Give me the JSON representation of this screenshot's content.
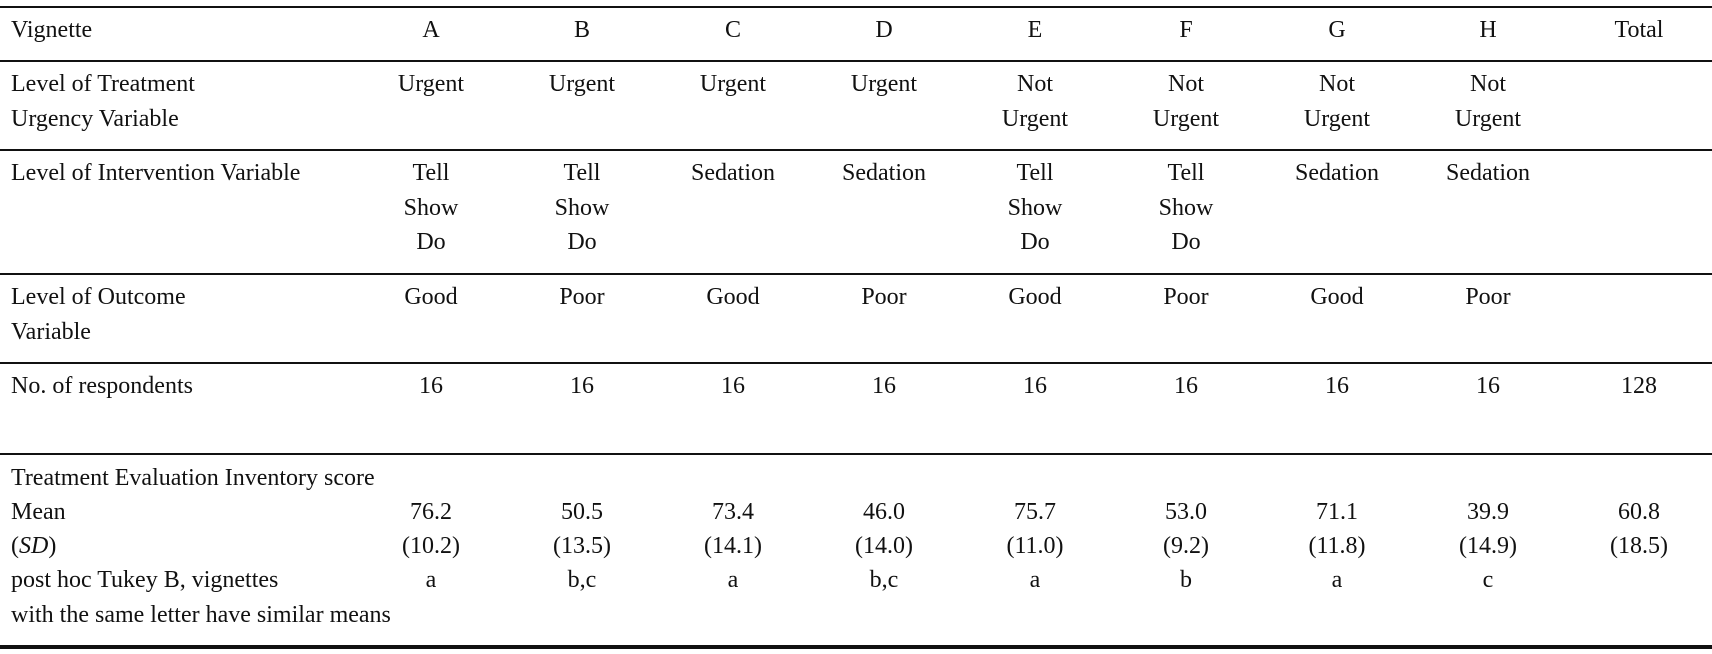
{
  "table": {
    "columns": [
      "A",
      "B",
      "C",
      "D",
      "E",
      "F",
      "G",
      "H",
      "Total"
    ],
    "header": {
      "label": "Vignette"
    },
    "rows": {
      "urgency": {
        "label_lines": [
          "Level of Treatment",
          "Urgency Variable"
        ],
        "cells": [
          [
            "Urgent"
          ],
          [
            "Urgent"
          ],
          [
            "Urgent"
          ],
          [
            "Urgent"
          ],
          [
            "Not",
            "Urgent"
          ],
          [
            "Not",
            "Urgent"
          ],
          [
            "Not",
            "Urgent"
          ],
          [
            "Not",
            "Urgent"
          ],
          []
        ]
      },
      "intervention": {
        "label_lines": [
          "Level of Intervention Variable"
        ],
        "cells": [
          [
            "Tell",
            "Show",
            "Do"
          ],
          [
            "Tell",
            "Show",
            "Do"
          ],
          [
            "Sedation"
          ],
          [
            "Sedation"
          ],
          [
            "Tell",
            "Show",
            "Do"
          ],
          [
            "Tell",
            "Show",
            "Do"
          ],
          [
            "Sedation"
          ],
          [
            "Sedation"
          ],
          []
        ]
      },
      "outcome": {
        "label_lines": [
          "Level of Outcome",
          "Variable"
        ],
        "cells": [
          [
            "Good"
          ],
          [
            "Poor"
          ],
          [
            "Good"
          ],
          [
            "Poor"
          ],
          [
            "Good"
          ],
          [
            "Poor"
          ],
          [
            "Good"
          ],
          [
            "Poor"
          ],
          []
        ]
      },
      "respondents": {
        "label": "No. of respondents",
        "values": [
          "16",
          "16",
          "16",
          "16",
          "16",
          "16",
          "16",
          "16",
          "128"
        ]
      }
    },
    "tei": {
      "heading": "Treatment Evaluation Inventory score",
      "mean_label": "Mean",
      "mean": [
        "76.2",
        "50.5",
        "73.4",
        "46.0",
        "75.7",
        "53.0",
        "71.1",
        "39.9",
        "60.8"
      ],
      "sd_label_open": "(",
      "sd_label_italic": "SD",
      "sd_label_close": ")",
      "sd": [
        "(10.2)",
        "(13.5)",
        "(14.1)",
        "(14.0)",
        "(11.0)",
        "(9.2)",
        "(11.8)",
        "(14.9)",
        "(18.5)"
      ],
      "tukey_label_lines": [
        "post hoc Tukey B, vignettes",
        "with the same letter have similar means"
      ],
      "tukey": [
        "a",
        "b,c",
        "a",
        "b,c",
        "a",
        "b",
        "a",
        "c",
        ""
      ]
    }
  }
}
